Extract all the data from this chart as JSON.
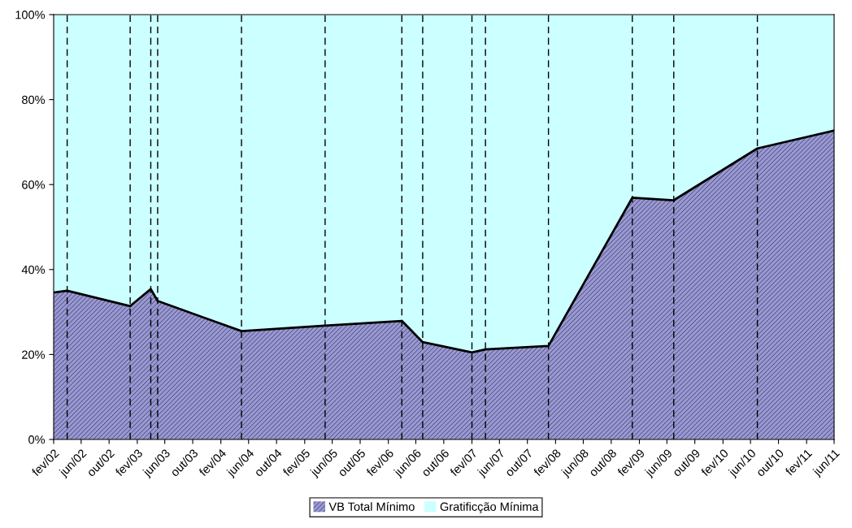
{
  "chart_data": {
    "type": "area",
    "stacked": true,
    "x": [
      "2002-02",
      "2002-04",
      "2003-01",
      "2003-04",
      "2003-05",
      "2004-05",
      "2005-05",
      "2006-04",
      "2006-07",
      "2007-02",
      "2007-04",
      "2008-01",
      "2009-01",
      "2009-07",
      "2010-07",
      "2011-06"
    ],
    "series": [
      {
        "name": "VB Total Mínimo",
        "color": "#9999cc",
        "values": [
          34.6,
          35.0,
          31.4,
          35.4,
          32.6,
          25.5,
          26.8,
          27.9,
          22.9,
          20.5,
          21.2,
          22.0,
          56.9,
          56.3,
          68.5,
          72.7
        ]
      },
      {
        "name": "Gratificção Mínima",
        "color": "#ccffff",
        "values": [
          65.4,
          65.0,
          68.6,
          64.6,
          67.4,
          74.5,
          73.2,
          72.1,
          77.1,
          79.5,
          78.8,
          78.0,
          43.1,
          43.7,
          31.5,
          27.3
        ]
      }
    ],
    "xlim": [
      "2002-02",
      "2011-06"
    ],
    "xticks": [
      {
        "value": "2002-02",
        "label": "fev/02"
      },
      {
        "value": "2002-06",
        "label": "jun/02"
      },
      {
        "value": "2002-10",
        "label": "out/02"
      },
      {
        "value": "2003-02",
        "label": "fev/03"
      },
      {
        "value": "2003-06",
        "label": "jun/03"
      },
      {
        "value": "2003-10",
        "label": "out/03"
      },
      {
        "value": "2004-02",
        "label": "fev/04"
      },
      {
        "value": "2004-06",
        "label": "jun/04"
      },
      {
        "value": "2004-10",
        "label": "out/04"
      },
      {
        "value": "2005-02",
        "label": "fev/05"
      },
      {
        "value": "2005-06",
        "label": "jun/05"
      },
      {
        "value": "2005-10",
        "label": "out/05"
      },
      {
        "value": "2006-02",
        "label": "fev/06"
      },
      {
        "value": "2006-06",
        "label": "jun/06"
      },
      {
        "value": "2006-10",
        "label": "out/06"
      },
      {
        "value": "2007-02",
        "label": "fev/07"
      },
      {
        "value": "2007-06",
        "label": "jun/07"
      },
      {
        "value": "2007-10",
        "label": "out/07"
      },
      {
        "value": "2008-02",
        "label": "fev/08"
      },
      {
        "value": "2008-06",
        "label": "jun/08"
      },
      {
        "value": "2008-10",
        "label": "out/08"
      },
      {
        "value": "2009-02",
        "label": "fev/09"
      },
      {
        "value": "2009-06",
        "label": "jun/09"
      },
      {
        "value": "2009-10",
        "label": "out/09"
      },
      {
        "value": "2010-02",
        "label": "fev/10"
      },
      {
        "value": "2010-06",
        "label": "jun/10"
      },
      {
        "value": "2010-10",
        "label": "out/10"
      },
      {
        "value": "2011-02",
        "label": "fev/11"
      },
      {
        "value": "2011-06",
        "label": "jun/11"
      }
    ],
    "ylim": [
      0,
      100
    ],
    "yticks": [
      {
        "value": 0,
        "label": "0%"
      },
      {
        "value": 20,
        "label": "20%"
      },
      {
        "value": 40,
        "label": "40%"
      },
      {
        "value": 60,
        "label": "60%"
      },
      {
        "value": 80,
        "label": "80%"
      },
      {
        "value": 100,
        "label": "100%"
      }
    ],
    "ref_lines": [
      {
        "axis": "x",
        "value": "2002-04",
        "color": "#000000",
        "line_style": "dashed"
      },
      {
        "axis": "x",
        "value": "2003-01",
        "color": "#000000",
        "line_style": "dashed"
      },
      {
        "axis": "x",
        "value": "2003-04",
        "color": "#000000",
        "line_style": "dashed"
      },
      {
        "axis": "x",
        "value": "2003-05",
        "color": "#000000",
        "line_style": "dashed"
      },
      {
        "axis": "x",
        "value": "2004-05",
        "color": "#000000",
        "line_style": "dashed"
      },
      {
        "axis": "x",
        "value": "2005-05",
        "color": "#000000",
        "line_style": "dashed"
      },
      {
        "axis": "x",
        "value": "2006-04",
        "color": "#000000",
        "line_style": "dashed"
      },
      {
        "axis": "x",
        "value": "2006-07",
        "color": "#000000",
        "line_style": "dashed"
      },
      {
        "axis": "x",
        "value": "2007-02",
        "color": "#000000",
        "line_style": "dashed"
      },
      {
        "axis": "x",
        "value": "2007-04",
        "color": "#000000",
        "line_style": "dashed"
      },
      {
        "axis": "x",
        "value": "2008-01",
        "color": "#000000",
        "line_style": "dashed"
      },
      {
        "axis": "x",
        "value": "2009-01",
        "color": "#000000",
        "line_style": "dashed"
      },
      {
        "axis": "x",
        "value": "2009-07",
        "color": "#000000",
        "line_style": "dashed"
      },
      {
        "axis": "x",
        "value": "2010-07",
        "color": "#000000",
        "line_style": "dashed"
      }
    ],
    "grid": false,
    "legend": "bottom"
  }
}
